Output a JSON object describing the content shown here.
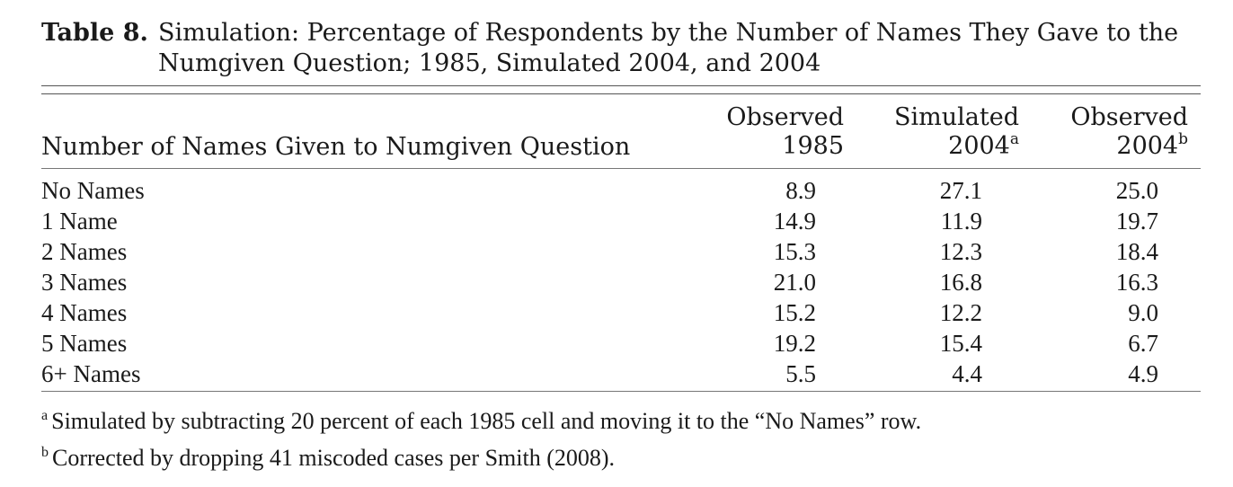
{
  "caption": {
    "label": "Table 8.",
    "title": "Simulation: Percentage of Respondents by the Number of Names They Gave to the Numgiven Question; 1985, Simulated 2004, and 2004"
  },
  "table": {
    "stub_header": "Number of Names Given to Numgiven Question",
    "columns": [
      {
        "line1": "Observed",
        "line2": "1985",
        "footnote": ""
      },
      {
        "line1": "Simulated",
        "line2": "2004",
        "footnote": "a"
      },
      {
        "line1": "Observed",
        "line2": "2004",
        "footnote": "b"
      }
    ],
    "rows": [
      {
        "label": "No Names",
        "values": [
          "8.9",
          "27.1",
          "25.0"
        ]
      },
      {
        "label": "1 Name",
        "values": [
          "14.9",
          "11.9",
          "19.7"
        ]
      },
      {
        "label": "2 Names",
        "values": [
          "15.3",
          "12.3",
          "18.4"
        ]
      },
      {
        "label": "3 Names",
        "values": [
          "21.0",
          "16.8",
          "16.3"
        ]
      },
      {
        "label": "4 Names",
        "values": [
          "15.2",
          "12.2",
          "9.0"
        ]
      },
      {
        "label": "5 Names",
        "values": [
          "19.2",
          "15.4",
          "6.7"
        ]
      },
      {
        "label": "6+ Names",
        "values": [
          "5.5",
          "4.4",
          "4.9"
        ]
      }
    ]
  },
  "footnotes": [
    {
      "mark": "a",
      "text": "Simulated by subtracting 20 percent of each 1985 cell and moving it to the “No Names” row."
    },
    {
      "mark": "b",
      "text": "Corrected by dropping 41 miscoded cases per Smith (2008)."
    }
  ]
}
